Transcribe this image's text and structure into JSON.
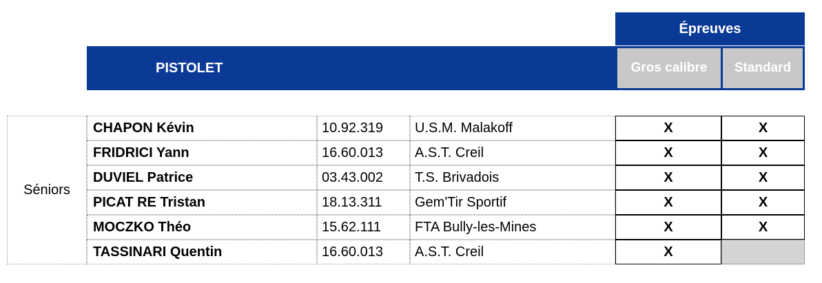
{
  "header": {
    "title": "Épreuves",
    "section": "PISTOLET",
    "columns": [
      "Gros calibre",
      "Standard"
    ]
  },
  "table": {
    "category": "Séniors",
    "rows": [
      [
        "CHAPON Kévin",
        "10.92.319",
        "U.S.M. Malakoff",
        "X",
        "X"
      ],
      [
        "FRIDRICI Yann",
        "16.60.013",
        "A.S.T. Creil",
        "X",
        "X"
      ],
      [
        "DUVIEL Patrice",
        "03.43.002",
        "T.S. Brivadois",
        "X",
        "X"
      ],
      [
        "PICAT RE Tristan",
        "18.13.311",
        "Gem'Tir Sportif",
        "X",
        "X"
      ],
      [
        "MOCZKO Théo",
        "15.62.111",
        "FTA Bully-les-Mines",
        "X",
        "X"
      ],
      [
        "TASSINARI Quentin",
        "16.60.013",
        "A.S.T. Creil",
        "X",
        null
      ]
    ]
  }
}
